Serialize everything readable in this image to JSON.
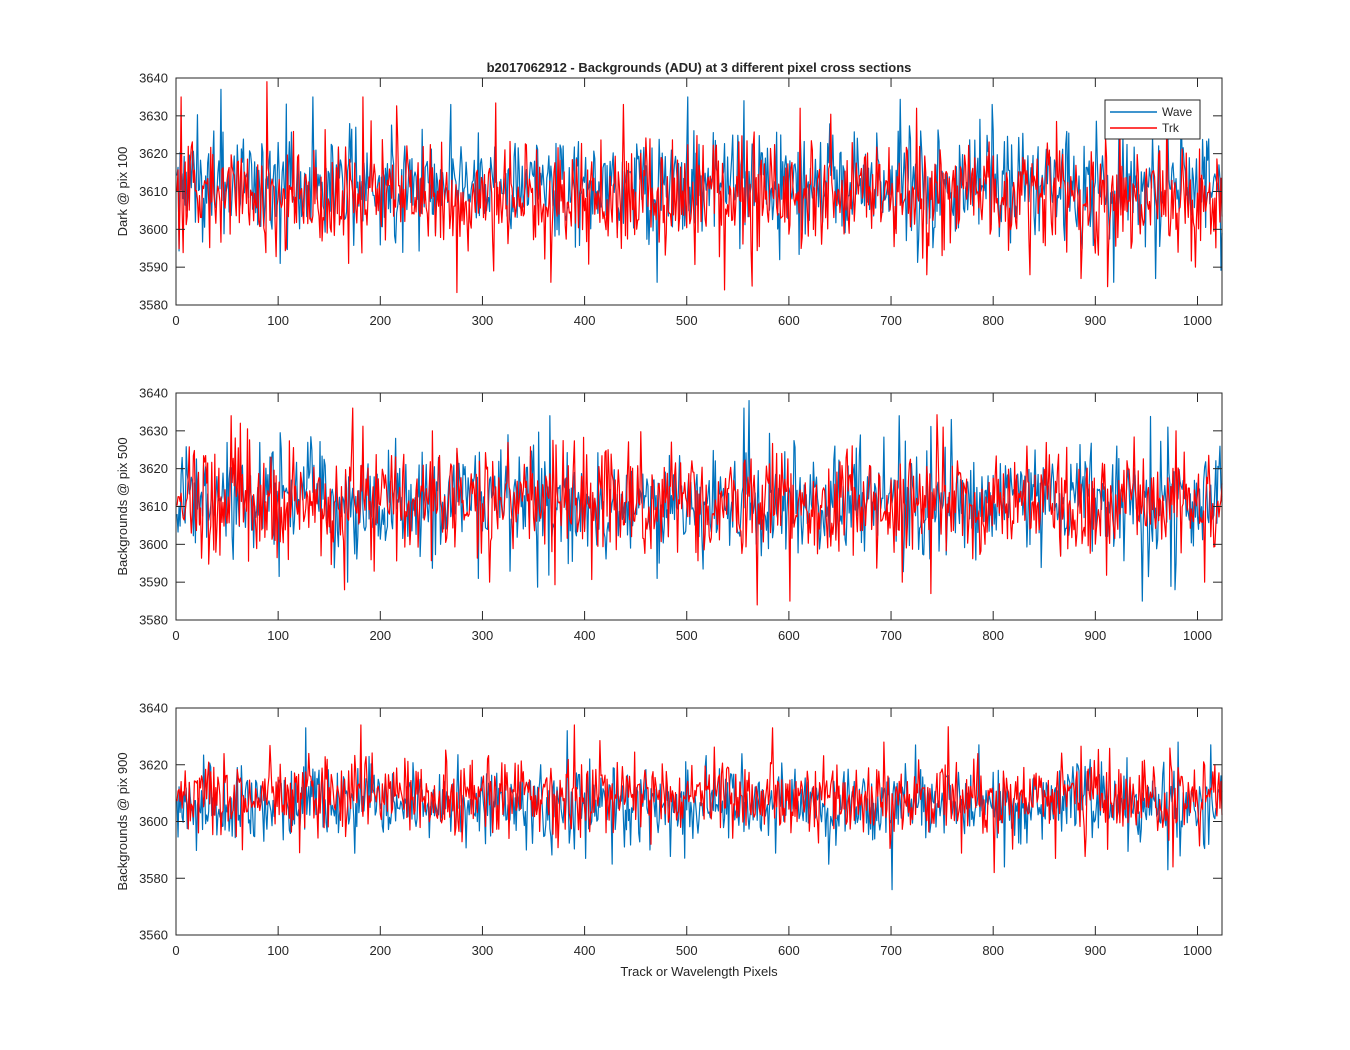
{
  "colors": {
    "wave": "#0072BD",
    "trk": "#FF0000",
    "axis": "#262626",
    "background": "#FFFFFF"
  },
  "chart_data": [
    {
      "type": "line",
      "title": "b2017062912 - Backgrounds (ADU) at 3 different pixel cross sections",
      "xlabel": "",
      "ylabel": "Dark @ pix 100",
      "xlim": [
        0,
        1024
      ],
      "ylim": [
        3580,
        3640
      ],
      "xticks": [
        "0",
        "100",
        "200",
        "300",
        "400",
        "500",
        "600",
        "700",
        "800",
        "900",
        "1000"
      ],
      "yticks": [
        "3580",
        "3590",
        "3600",
        "3610",
        "3620",
        "3630",
        "3640"
      ],
      "grid": false,
      "legend": {
        "placement": "top-right",
        "entries": [
          "Wave",
          "Trk"
        ]
      },
      "noise_model": {
        "points_per_series": 1024,
        "approx_std": 7
      },
      "series": [
        {
          "name": "Wave",
          "color": "#0072BD",
          "mean": 3612,
          "peaks": [
            [
              43,
              3637
            ],
            [
              133,
              3635
            ],
            [
              268,
              3633
            ],
            [
              500,
              3635
            ],
            [
              555,
              3634
            ],
            [
              798,
              3633
            ],
            [
              983,
              3631
            ]
          ],
          "troughs": [
            [
              101,
              3591
            ],
            [
              470,
              3586
            ],
            [
              590,
              3592
            ],
            [
              917,
              3586
            ],
            [
              958,
              3587
            ]
          ]
        },
        {
          "name": "Trk",
          "color": "#FF0000",
          "mean": 3609,
          "peaks": [
            [
              4,
              3635
            ],
            [
              88,
              3639
            ],
            [
              182,
              3635
            ],
            [
              437,
              3633
            ],
            [
              610,
              3632
            ],
            [
              724,
              3632
            ],
            [
              969,
              3632
            ]
          ],
          "troughs": [
            [
              168,
              3591
            ],
            [
              310,
              3589
            ],
            [
              366,
              3586
            ],
            [
              536,
              3584
            ],
            [
              563,
              3585
            ],
            [
              734,
              3588
            ],
            [
              835,
              3588
            ],
            [
              885,
              3587
            ],
            [
              997,
              3590
            ]
          ]
        }
      ]
    },
    {
      "type": "line",
      "title": "",
      "xlabel": "",
      "ylabel": "Backgrounds @ pix 500",
      "xlim": [
        0,
        1024
      ],
      "ylim": [
        3580,
        3640
      ],
      "xticks": [
        "0",
        "100",
        "200",
        "300",
        "400",
        "500",
        "600",
        "700",
        "800",
        "900",
        "1000"
      ],
      "yticks": [
        "3580",
        "3590",
        "3600",
        "3610",
        "3620",
        "3630",
        "3640"
      ],
      "grid": false,
      "noise_model": {
        "points_per_series": 1024,
        "approx_std": 7
      },
      "series": [
        {
          "name": "Wave",
          "color": "#0072BD",
          "mean": 3611,
          "peaks": [
            [
              365,
              3634
            ],
            [
              560,
              3638
            ],
            [
              555,
              3636
            ],
            [
              707,
              3634
            ],
            [
              758,
              3633
            ],
            [
              970,
              3631
            ]
          ],
          "troughs": [
            [
              167,
              3590
            ],
            [
              295,
              3591
            ],
            [
              470,
              3591
            ],
            [
              945,
              3585
            ],
            [
              977,
              3588
            ]
          ]
        },
        {
          "name": "Trk",
          "color": "#FF0000",
          "mean": 3611,
          "peaks": [
            [
              172,
              3636
            ],
            [
              53,
              3634
            ],
            [
              62,
              3632
            ],
            [
              250,
              3630
            ],
            [
              600,
              3629
            ],
            [
              750,
              3631
            ],
            [
              978,
              3630
            ]
          ],
          "troughs": [
            [
              164,
              3588
            ],
            [
              306,
              3590
            ],
            [
              568,
              3584
            ],
            [
              600,
              3585
            ],
            [
              710,
              3590
            ],
            [
              738,
              3587
            ],
            [
              1006,
              3590
            ]
          ]
        }
      ]
    },
    {
      "type": "line",
      "title": "",
      "xlabel": "Track or Wavelength Pixels",
      "ylabel": "Backgrounds @ pix 900",
      "xlim": [
        0,
        1024
      ],
      "ylim": [
        3560,
        3640
      ],
      "xticks": [
        "0",
        "100",
        "200",
        "300",
        "400",
        "500",
        "600",
        "700",
        "800",
        "900",
        "1000"
      ],
      "yticks": [
        "3560",
        "3580",
        "3600",
        "3620",
        "3640"
      ],
      "grid": false,
      "noise_model": {
        "points_per_series": 1024,
        "approx_std": 7
      },
      "series": [
        {
          "name": "Wave",
          "color": "#0072BD",
          "mean": 3606,
          "peaks": [
            [
              126,
              3633
            ],
            [
              382,
              3632
            ],
            [
              785,
              3627
            ],
            [
              980,
              3628
            ],
            [
              1012,
              3627
            ]
          ],
          "troughs": [
            [
              400,
              3587
            ],
            [
              426,
              3585
            ],
            [
              700,
              3576
            ],
            [
              810,
              3584
            ],
            [
              970,
              3583
            ]
          ]
        },
        {
          "name": "Trk",
          "color": "#FF0000",
          "mean": 3609,
          "peaks": [
            [
              180,
              3634
            ],
            [
              389,
              3634
            ],
            [
              583,
              3633
            ],
            [
              692,
              3628
            ],
            [
              780,
              3622
            ],
            [
              1016,
              3620
            ]
          ],
          "troughs": [
            [
              120,
              3589
            ],
            [
              800,
              3582
            ],
            [
              860,
              3587
            ],
            [
              975,
              3584
            ]
          ]
        }
      ]
    }
  ]
}
